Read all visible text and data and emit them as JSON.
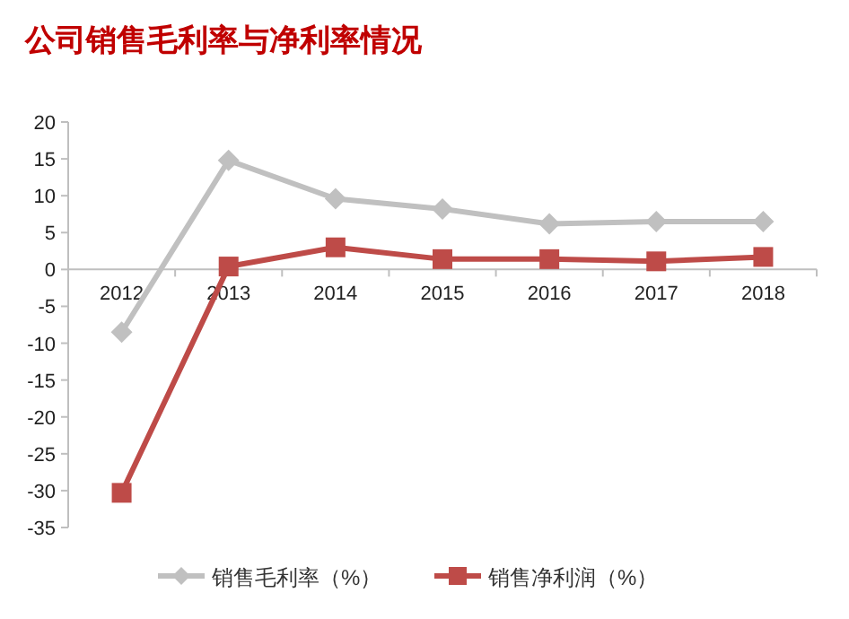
{
  "chart_data": {
    "type": "line",
    "title": "公司销售毛利率与净利率情况",
    "categories": [
      "2012",
      "2013",
      "2014",
      "2015",
      "2016",
      "2017",
      "2018"
    ],
    "series": [
      {
        "name": "销售毛利率（%）",
        "color": "#c0c0c0",
        "marker": "diamond",
        "values": [
          -8.5,
          14.8,
          9.6,
          8.2,
          6.2,
          6.5,
          6.5
        ]
      },
      {
        "name": "销售净利润（%）",
        "color": "#be4b48",
        "marker": "square",
        "values": [
          -30.3,
          0.4,
          3.0,
          1.4,
          1.4,
          1.1,
          1.7
        ]
      }
    ],
    "ylim": [
      -35,
      20
    ],
    "yticks": [
      -35,
      -30,
      -25,
      -20,
      -15,
      -10,
      -5,
      0,
      5,
      10,
      15,
      20
    ],
    "grid": false,
    "legend": "bottom"
  }
}
